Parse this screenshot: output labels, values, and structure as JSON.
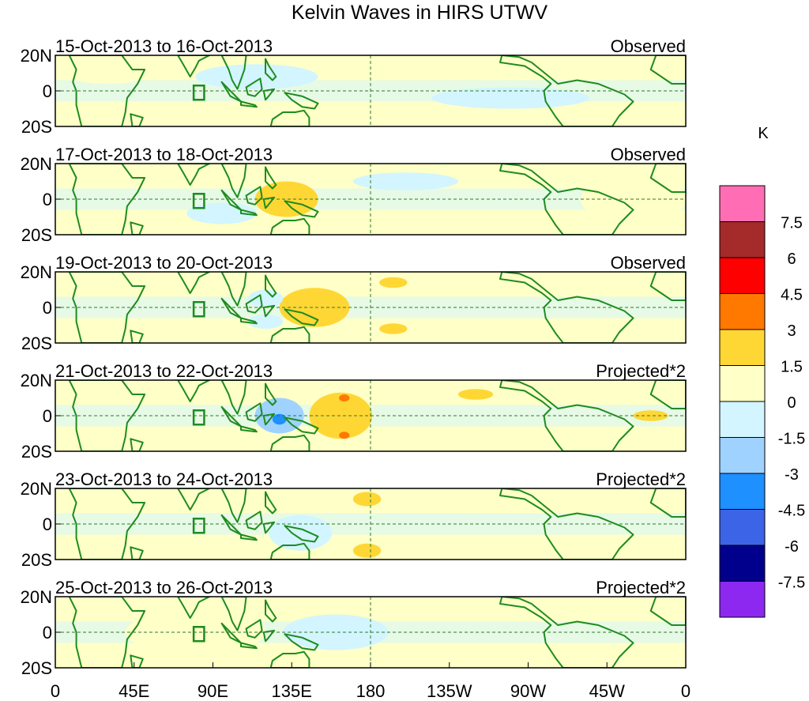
{
  "chart_data": {
    "type": "heatmap",
    "title": "Kelvin Waves in HIRS UTWV",
    "units": "K",
    "y_ticks": [
      "20N",
      "0",
      "20S"
    ],
    "x_ticks": [
      "0",
      "45E",
      "90E",
      "135E",
      "180",
      "135W",
      "90W",
      "45W",
      "0"
    ],
    "x_range_deg": [
      0,
      360
    ],
    "y_range_deg": [
      -20,
      20
    ],
    "colorbar": {
      "levels": [
        "7.5",
        "6",
        "4.5",
        "3",
        "1.5",
        "0",
        "-1.5",
        "-3",
        "-4.5",
        "-6",
        "-7.5"
      ],
      "colors": [
        "#ff6eb4",
        "#a52a2a",
        "#ff0000",
        "#ff7800",
        "#ffd735",
        "#ffffc8",
        "#d2f5ff",
        "#a0d2ff",
        "#1e90ff",
        "#3c64e6",
        "#00008c",
        "#8c28f0"
      ]
    },
    "panels": [
      {
        "date_range": "15-Oct-2013 to 16-Oct-2013",
        "label": "Observed",
        "features": [
          {
            "lon": 115,
            "lat": 8,
            "value": -1.5,
            "rx": 35,
            "ry": 7
          },
          {
            "lon": 260,
            "lat": -4,
            "value": -1.5,
            "rx": 45,
            "ry": 6
          },
          {
            "lon": 200,
            "lat": 14,
            "value": 0,
            "rx": 40,
            "ry": 5
          },
          {
            "lon": 30,
            "lat": 10,
            "value": 0,
            "rx": 25,
            "ry": 6
          }
        ]
      },
      {
        "date_range": "17-Oct-2013 to 18-Oct-2013",
        "label": "Observed",
        "features": [
          {
            "lon": 132,
            "lat": 0,
            "value": 1.5,
            "rx": 18,
            "ry": 10
          },
          {
            "lon": 330,
            "lat": 0,
            "value": 0,
            "rx": 30,
            "ry": 14
          },
          {
            "lon": 200,
            "lat": 10,
            "value": -1.5,
            "rx": 30,
            "ry": 5
          },
          {
            "lon": 95,
            "lat": -8,
            "value": -1.5,
            "rx": 20,
            "ry": 6
          }
        ]
      },
      {
        "date_range": "19-Oct-2013 to 20-Oct-2013",
        "label": "Observed",
        "features": [
          {
            "lon": 148,
            "lat": 0,
            "value": 1.5,
            "rx": 20,
            "ry": 11
          },
          {
            "lon": 193,
            "lat": 14,
            "value": 1.5,
            "rx": 8,
            "ry": 3
          },
          {
            "lon": 193,
            "lat": -12,
            "value": 1.5,
            "rx": 8,
            "ry": 3
          },
          {
            "lon": 120,
            "lat": 5,
            "value": -1.5,
            "rx": 10,
            "ry": 5
          },
          {
            "lon": 120,
            "lat": -8,
            "value": -1.5,
            "rx": 10,
            "ry": 4
          }
        ]
      },
      {
        "date_range": "21-Oct-2013 to 22-Oct-2013",
        "label": "Projected*2",
        "features": [
          {
            "lon": 163,
            "lat": 0,
            "value": 1.5,
            "rx": 18,
            "ry": 13
          },
          {
            "lon": 165,
            "lat": 10,
            "value": 3,
            "rx": 3,
            "ry": 2
          },
          {
            "lon": 165,
            "lat": -11,
            "value": 3,
            "rx": 3,
            "ry": 2
          },
          {
            "lon": 128,
            "lat": 0,
            "value": -3,
            "rx": 14,
            "ry": 10
          },
          {
            "lon": 128,
            "lat": -2,
            "value": -4.5,
            "rx": 4,
            "ry": 3
          },
          {
            "lon": 240,
            "lat": 12,
            "value": 1.5,
            "rx": 10,
            "ry": 3
          },
          {
            "lon": 340,
            "lat": 0,
            "value": 1.5,
            "rx": 10,
            "ry": 3
          }
        ]
      },
      {
        "date_range": "23-Oct-2013 to 24-Oct-2013",
        "label": "Projected*2",
        "features": [
          {
            "lon": 178,
            "lat": 14,
            "value": 1.5,
            "rx": 8,
            "ry": 4
          },
          {
            "lon": 178,
            "lat": -15,
            "value": 1.5,
            "rx": 8,
            "ry": 4
          },
          {
            "lon": 140,
            "lat": -5,
            "value": -1.5,
            "rx": 18,
            "ry": 10
          }
        ]
      },
      {
        "date_range": "25-Oct-2013 to 26-Oct-2013",
        "label": "Projected*2",
        "features": [
          {
            "lon": 160,
            "lat": 0,
            "value": -1.5,
            "rx": 30,
            "ry": 10
          },
          {
            "lon": 80,
            "lat": 0,
            "value": 0,
            "rx": 40,
            "ry": 12
          }
        ]
      }
    ]
  }
}
